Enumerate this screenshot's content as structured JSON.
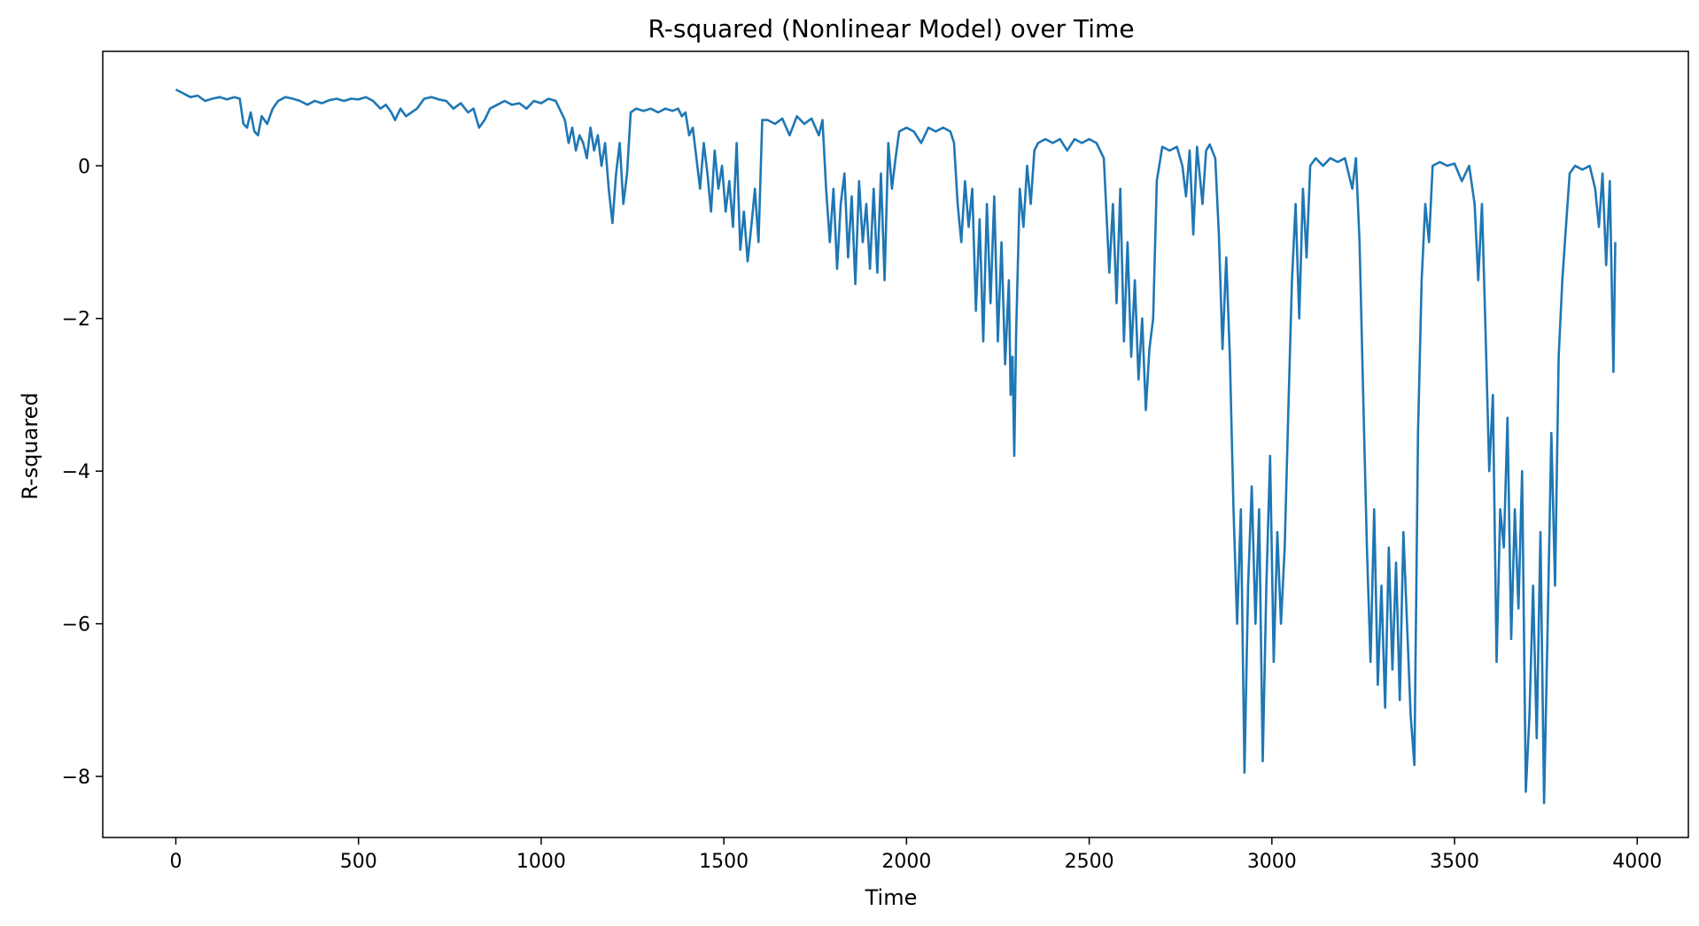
{
  "chart_data": {
    "type": "line",
    "title": "R-squared (Nonlinear Model) over Time",
    "xlabel": "Time",
    "ylabel": "R-squared",
    "xlim": [
      -200,
      4140
    ],
    "ylim": [
      -8.8,
      1.5
    ],
    "xticks": [
      0,
      500,
      1000,
      1500,
      2000,
      2500,
      3000,
      3500,
      4000
    ],
    "yticks": [
      0,
      -2,
      -4,
      -6,
      -8
    ],
    "xtick_labels": [
      "0",
      "500",
      "1000",
      "1500",
      "2000",
      "2500",
      "3000",
      "3500",
      "4000"
    ],
    "ytick_labels": [
      "0",
      "−2",
      "−4",
      "−6",
      "−8"
    ],
    "grid": false,
    "legend": "none",
    "series_color": "#1f77b4",
    "series": [
      {
        "points": [
          [
            0,
            1.0
          ],
          [
            20,
            0.95
          ],
          [
            40,
            0.9
          ],
          [
            60,
            0.92
          ],
          [
            80,
            0.85
          ],
          [
            100,
            0.88
          ],
          [
            120,
            0.9
          ],
          [
            140,
            0.87
          ],
          [
            160,
            0.9
          ],
          [
            175,
            0.88
          ],
          [
            185,
            0.55
          ],
          [
            195,
            0.5
          ],
          [
            205,
            0.7
          ],
          [
            215,
            0.45
          ],
          [
            225,
            0.4
          ],
          [
            235,
            0.65
          ],
          [
            250,
            0.55
          ],
          [
            265,
            0.75
          ],
          [
            280,
            0.85
          ],
          [
            300,
            0.9
          ],
          [
            320,
            0.88
          ],
          [
            340,
            0.85
          ],
          [
            360,
            0.8
          ],
          [
            380,
            0.85
          ],
          [
            400,
            0.82
          ],
          [
            420,
            0.86
          ],
          [
            440,
            0.88
          ],
          [
            460,
            0.85
          ],
          [
            480,
            0.88
          ],
          [
            500,
            0.87
          ],
          [
            520,
            0.9
          ],
          [
            540,
            0.85
          ],
          [
            560,
            0.75
          ],
          [
            575,
            0.8
          ],
          [
            590,
            0.7
          ],
          [
            600,
            0.6
          ],
          [
            615,
            0.75
          ],
          [
            630,
            0.65
          ],
          [
            645,
            0.7
          ],
          [
            660,
            0.75
          ],
          [
            680,
            0.88
          ],
          [
            700,
            0.9
          ],
          [
            720,
            0.87
          ],
          [
            740,
            0.85
          ],
          [
            760,
            0.75
          ],
          [
            780,
            0.82
          ],
          [
            800,
            0.7
          ],
          [
            815,
            0.75
          ],
          [
            830,
            0.5
          ],
          [
            845,
            0.6
          ],
          [
            860,
            0.75
          ],
          [
            880,
            0.8
          ],
          [
            900,
            0.85
          ],
          [
            920,
            0.8
          ],
          [
            940,
            0.82
          ],
          [
            960,
            0.75
          ],
          [
            980,
            0.85
          ],
          [
            1000,
            0.82
          ],
          [
            1020,
            0.88
          ],
          [
            1040,
            0.85
          ],
          [
            1055,
            0.7
          ],
          [
            1065,
            0.6
          ],
          [
            1075,
            0.3
          ],
          [
            1085,
            0.5
          ],
          [
            1095,
            0.2
          ],
          [
            1105,
            0.4
          ],
          [
            1115,
            0.3
          ],
          [
            1125,
            0.1
          ],
          [
            1135,
            0.5
          ],
          [
            1145,
            0.2
          ],
          [
            1155,
            0.4
          ],
          [
            1165,
            0.0
          ],
          [
            1175,
            0.3
          ],
          [
            1185,
            -0.3
          ],
          [
            1195,
            -0.75
          ],
          [
            1205,
            -0.1
          ],
          [
            1215,
            0.3
          ],
          [
            1225,
            -0.5
          ],
          [
            1235,
            -0.1
          ],
          [
            1245,
            0.7
          ],
          [
            1260,
            0.75
          ],
          [
            1280,
            0.72
          ],
          [
            1300,
            0.75
          ],
          [
            1320,
            0.7
          ],
          [
            1340,
            0.75
          ],
          [
            1360,
            0.72
          ],
          [
            1375,
            0.75
          ],
          [
            1385,
            0.65
          ],
          [
            1395,
            0.7
          ],
          [
            1405,
            0.4
          ],
          [
            1415,
            0.5
          ],
          [
            1425,
            0.1
          ],
          [
            1435,
            -0.3
          ],
          [
            1445,
            0.3
          ],
          [
            1455,
            -0.1
          ],
          [
            1465,
            -0.6
          ],
          [
            1475,
            0.2
          ],
          [
            1485,
            -0.3
          ],
          [
            1495,
            0.0
          ],
          [
            1505,
            -0.6
          ],
          [
            1515,
            -0.2
          ],
          [
            1525,
            -0.8
          ],
          [
            1535,
            0.3
          ],
          [
            1545,
            -1.1
          ],
          [
            1555,
            -0.6
          ],
          [
            1565,
            -1.25
          ],
          [
            1575,
            -0.8
          ],
          [
            1585,
            -0.3
          ],
          [
            1595,
            -1.0
          ],
          [
            1605,
            0.6
          ],
          [
            1620,
            0.6
          ],
          [
            1640,
            0.55
          ],
          [
            1660,
            0.62
          ],
          [
            1680,
            0.4
          ],
          [
            1700,
            0.65
          ],
          [
            1720,
            0.55
          ],
          [
            1740,
            0.62
          ],
          [
            1760,
            0.4
          ],
          [
            1770,
            0.6
          ],
          [
            1780,
            -0.3
          ],
          [
            1790,
            -1.0
          ],
          [
            1800,
            -0.3
          ],
          [
            1810,
            -1.35
          ],
          [
            1820,
            -0.5
          ],
          [
            1830,
            -0.1
          ],
          [
            1840,
            -1.2
          ],
          [
            1850,
            -0.4
          ],
          [
            1860,
            -1.55
          ],
          [
            1870,
            -0.2
          ],
          [
            1880,
            -1.0
          ],
          [
            1890,
            -0.5
          ],
          [
            1900,
            -1.35
          ],
          [
            1910,
            -0.3
          ],
          [
            1920,
            -1.4
          ],
          [
            1930,
            -0.1
          ],
          [
            1940,
            -1.5
          ],
          [
            1950,
            0.3
          ],
          [
            1960,
            -0.3
          ],
          [
            1970,
            0.1
          ],
          [
            1980,
            0.45
          ],
          [
            2000,
            0.5
          ],
          [
            2020,
            0.45
          ],
          [
            2040,
            0.3
          ],
          [
            2060,
            0.5
          ],
          [
            2080,
            0.45
          ],
          [
            2100,
            0.5
          ],
          [
            2120,
            0.45
          ],
          [
            2130,
            0.3
          ],
          [
            2140,
            -0.5
          ],
          [
            2150,
            -1.0
          ],
          [
            2160,
            -0.2
          ],
          [
            2170,
            -0.8
          ],
          [
            2180,
            -0.3
          ],
          [
            2190,
            -1.9
          ],
          [
            2200,
            -0.7
          ],
          [
            2210,
            -2.3
          ],
          [
            2220,
            -0.5
          ],
          [
            2230,
            -1.8
          ],
          [
            2240,
            -0.4
          ],
          [
            2250,
            -2.3
          ],
          [
            2260,
            -1.0
          ],
          [
            2270,
            -2.6
          ],
          [
            2280,
            -1.5
          ],
          [
            2285,
            -3.0
          ],
          [
            2290,
            -2.5
          ],
          [
            2295,
            -3.8
          ],
          [
            2300,
            -2.2
          ],
          [
            2310,
            -0.3
          ],
          [
            2320,
            -0.8
          ],
          [
            2330,
            0.0
          ],
          [
            2340,
            -0.5
          ],
          [
            2350,
            0.2
          ],
          [
            2360,
            0.3
          ],
          [
            2380,
            0.35
          ],
          [
            2400,
            0.3
          ],
          [
            2420,
            0.35
          ],
          [
            2440,
            0.2
          ],
          [
            2460,
            0.35
          ],
          [
            2480,
            0.3
          ],
          [
            2500,
            0.35
          ],
          [
            2520,
            0.3
          ],
          [
            2540,
            0.1
          ],
          [
            2555,
            -1.4
          ],
          [
            2565,
            -0.5
          ],
          [
            2575,
            -1.8
          ],
          [
            2585,
            -0.3
          ],
          [
            2595,
            -2.3
          ],
          [
            2605,
            -1.0
          ],
          [
            2615,
            -2.5
          ],
          [
            2625,
            -1.5
          ],
          [
            2635,
            -2.8
          ],
          [
            2645,
            -2.0
          ],
          [
            2655,
            -3.2
          ],
          [
            2665,
            -2.4
          ],
          [
            2675,
            -2.0
          ],
          [
            2685,
            -0.2
          ],
          [
            2700,
            0.25
          ],
          [
            2720,
            0.2
          ],
          [
            2740,
            0.25
          ],
          [
            2755,
            0.0
          ],
          [
            2765,
            -0.4
          ],
          [
            2775,
            0.2
          ],
          [
            2785,
            -0.9
          ],
          [
            2795,
            0.25
          ],
          [
            2810,
            -0.5
          ],
          [
            2820,
            0.2
          ],
          [
            2830,
            0.28
          ],
          [
            2845,
            0.1
          ],
          [
            2855,
            -0.9
          ],
          [
            2865,
            -2.4
          ],
          [
            2875,
            -1.2
          ],
          [
            2885,
            -2.5
          ],
          [
            2895,
            -4.5
          ],
          [
            2905,
            -6.0
          ],
          [
            2915,
            -4.5
          ],
          [
            2925,
            -7.95
          ],
          [
            2935,
            -5.5
          ],
          [
            2945,
            -4.2
          ],
          [
            2955,
            -6.0
          ],
          [
            2965,
            -4.5
          ],
          [
            2975,
            -7.8
          ],
          [
            2985,
            -5.5
          ],
          [
            2995,
            -3.8
          ],
          [
            3005,
            -6.5
          ],
          [
            3015,
            -4.8
          ],
          [
            3025,
            -6.0
          ],
          [
            3035,
            -5.0
          ],
          [
            3045,
            -3.2
          ],
          [
            3055,
            -1.5
          ],
          [
            3065,
            -0.5
          ],
          [
            3075,
            -2.0
          ],
          [
            3085,
            -0.3
          ],
          [
            3095,
            -1.2
          ],
          [
            3105,
            0.0
          ],
          [
            3120,
            0.1
          ],
          [
            3140,
            0.0
          ],
          [
            3160,
            0.1
          ],
          [
            3180,
            0.05
          ],
          [
            3200,
            0.1
          ],
          [
            3220,
            -0.3
          ],
          [
            3230,
            0.1
          ],
          [
            3240,
            -1.0
          ],
          [
            3250,
            -3.0
          ],
          [
            3260,
            -5.0
          ],
          [
            3270,
            -6.5
          ],
          [
            3280,
            -4.5
          ],
          [
            3290,
            -6.8
          ],
          [
            3300,
            -5.5
          ],
          [
            3310,
            -7.1
          ],
          [
            3320,
            -5.0
          ],
          [
            3330,
            -6.6
          ],
          [
            3340,
            -5.2
          ],
          [
            3350,
            -7.0
          ],
          [
            3360,
            -4.8
          ],
          [
            3370,
            -6.0
          ],
          [
            3380,
            -7.2
          ],
          [
            3390,
            -7.85
          ],
          [
            3400,
            -3.5
          ],
          [
            3410,
            -1.5
          ],
          [
            3420,
            -0.5
          ],
          [
            3430,
            -1.0
          ],
          [
            3440,
            0.0
          ],
          [
            3460,
            0.05
          ],
          [
            3480,
            0.0
          ],
          [
            3500,
            0.03
          ],
          [
            3520,
            -0.2
          ],
          [
            3540,
            0.0
          ],
          [
            3555,
            -0.5
          ],
          [
            3565,
            -1.5
          ],
          [
            3575,
            -0.5
          ],
          [
            3585,
            -2.2
          ],
          [
            3595,
            -4.0
          ],
          [
            3605,
            -3.0
          ],
          [
            3615,
            -6.5
          ],
          [
            3625,
            -4.5
          ],
          [
            3635,
            -5.0
          ],
          [
            3645,
            -3.3
          ],
          [
            3655,
            -6.2
          ],
          [
            3665,
            -4.5
          ],
          [
            3675,
            -5.8
          ],
          [
            3685,
            -4.0
          ],
          [
            3695,
            -8.2
          ],
          [
            3705,
            -7.2
          ],
          [
            3715,
            -5.5
          ],
          [
            3725,
            -7.5
          ],
          [
            3735,
            -4.8
          ],
          [
            3745,
            -8.35
          ],
          [
            3755,
            -6.0
          ],
          [
            3765,
            -3.5
          ],
          [
            3775,
            -5.5
          ],
          [
            3785,
            -2.5
          ],
          [
            3795,
            -1.5
          ],
          [
            3805,
            -0.8
          ],
          [
            3815,
            -0.1
          ],
          [
            3830,
            0.0
          ],
          [
            3850,
            -0.05
          ],
          [
            3870,
            0.0
          ],
          [
            3885,
            -0.3
          ],
          [
            3895,
            -0.8
          ],
          [
            3905,
            -0.1
          ],
          [
            3915,
            -1.3
          ],
          [
            3925,
            -0.2
          ],
          [
            3935,
            -2.7
          ],
          [
            3940,
            -1.0
          ]
        ]
      }
    ]
  }
}
